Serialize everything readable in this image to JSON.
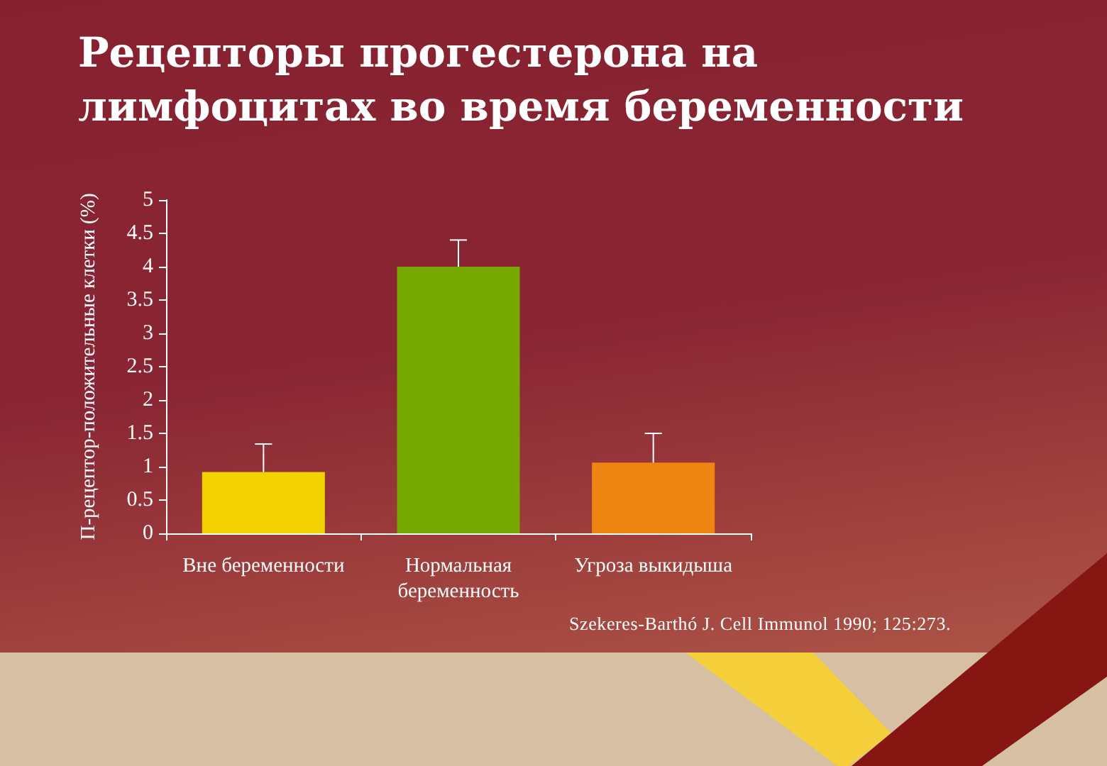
{
  "chart_data": {
    "type": "bar",
    "title": "Рецепторы прогестерона на лимфоцитах во время беременности",
    "ylabel": "П-рецептор-положительные клетки (%)",
    "categories": [
      "Вне беременности",
      "Нормальная беременность",
      "Угроза выкидыша"
    ],
    "values": [
      0.92,
      4.0,
      1.06
    ],
    "colors": [
      "#f2d100",
      "#76a800",
      "#ee8412"
    ],
    "errors": [
      [
        0.92,
        1.34
      ],
      [
        4.0,
        4.4
      ],
      [
        1.06,
        1.5
      ]
    ],
    "ylim": [
      0,
      5
    ],
    "yticks": [
      0,
      0.5,
      1,
      1.5,
      2,
      2.5,
      3,
      3.5,
      4,
      4.5,
      5
    ],
    "annotations": [
      "Szekeres-Barthó J. Cell Immunol 1990; 125:273."
    ]
  }
}
